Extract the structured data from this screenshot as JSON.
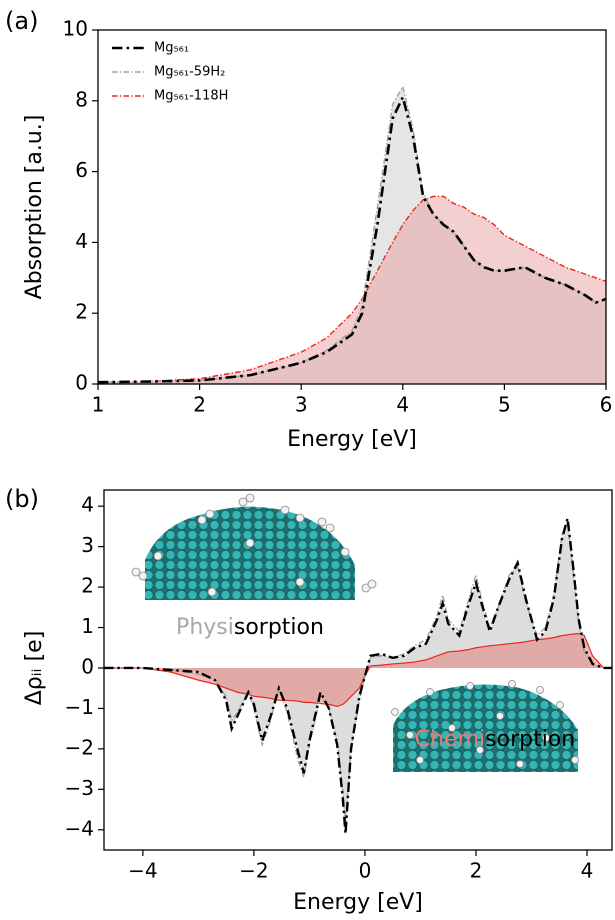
{
  "chart_data": [
    {
      "type": "line",
      "panel_label": "(a)",
      "xlabel": "Energy [eV]",
      "ylabel": "Absorption [a.u.]",
      "xlim": [
        1,
        6
      ],
      "ylim": [
        0,
        10
      ],
      "xticks": [
        1,
        2,
        3,
        4,
        5,
        6
      ],
      "yticks": [
        0,
        2,
        4,
        6,
        8,
        10
      ],
      "legend": "upper left",
      "x": [
        1,
        1.5,
        2,
        2.5,
        3,
        3.25,
        3.5,
        3.6,
        3.75,
        3.9,
        4,
        4.1,
        4.2,
        4.3,
        4.4,
        4.5,
        4.6,
        4.7,
        4.8,
        4.9,
        5,
        5.2,
        5.4,
        5.6,
        5.8,
        5.9,
        6
      ],
      "series": [
        {
          "name": "Mg₅₆₁",
          "color": "#000000",
          "style": "dashdot",
          "width": 2.6,
          "values": [
            0.05,
            0.07,
            0.1,
            0.25,
            0.6,
            0.9,
            1.4,
            2,
            4.5,
            7.5,
            8.1,
            7,
            5.3,
            4.8,
            4.5,
            4.3,
            3.9,
            3.5,
            3.3,
            3.2,
            3.2,
            3.3,
            3.0,
            2.8,
            2.5,
            2.3,
            2.4
          ]
        },
        {
          "name": "Mg₅₆₁-59H₂",
          "color": "#a0a0a0",
          "style": "dashdot",
          "width": 1.4,
          "fill": "#cccccc",
          "values": [
            0.05,
            0.07,
            0.1,
            0.25,
            0.6,
            0.95,
            1.5,
            2.2,
            5.0,
            7.9,
            8.4,
            7.2,
            5.4,
            4.8,
            4.5,
            4.3,
            3.9,
            3.5,
            3.3,
            3.2,
            3.2,
            3.3,
            3.0,
            2.8,
            2.5,
            2.3,
            2.4
          ]
        },
        {
          "name": "Mg₅₆₁-118H",
          "color": "#e8281e",
          "style": "dashdot",
          "width": 1.4,
          "fill": "#e8a0a0",
          "values": [
            0.05,
            0.07,
            0.15,
            0.4,
            0.9,
            1.3,
            2.0,
            2.4,
            3.2,
            4.0,
            4.5,
            4.9,
            5.2,
            5.3,
            5.3,
            5.1,
            5.0,
            4.8,
            4.7,
            4.5,
            4.2,
            3.9,
            3.6,
            3.3,
            3.1,
            3.0,
            2.9
          ]
        }
      ]
    },
    {
      "type": "line",
      "panel_label": "(b)",
      "xlabel": "Energy [eV]",
      "ylabel": "Δρᵢᵢ [e]",
      "xlim": [
        -4.7,
        4.45
      ],
      "ylim": [
        -4.5,
        4.4
      ],
      "xticks": [
        {
          "value": -4,
          "label": "−4"
        },
        {
          "value": -2,
          "label": "−2"
        },
        0,
        2,
        4
      ],
      "yticks": [
        {
          "value": -4,
          "label": "−4"
        },
        {
          "value": -3,
          "label": "−3"
        },
        {
          "value": -2,
          "label": "−2"
        },
        {
          "value": -1,
          "label": "−1"
        },
        0,
        1,
        2,
        3,
        4
      ],
      "annotations": [
        {
          "parts": [
            "Physi",
            "sorption"
          ]
        },
        {
          "parts": [
            "Chemi",
            "sorption"
          ]
        }
      ],
      "x": [
        -4.7,
        -4,
        -3.5,
        -3,
        -2.7,
        -2.5,
        -2.4,
        -2.3,
        -2.1,
        -2,
        -1.85,
        -1.7,
        -1.55,
        -1.4,
        -1.2,
        -1.1,
        -1,
        -0.8,
        -0.65,
        -0.5,
        -0.4,
        -0.35,
        -0.25,
        -0.1,
        0,
        0.1,
        0.3,
        0.5,
        0.7,
        0.9,
        1.1,
        1.3,
        1.4,
        1.5,
        1.7,
        1.85,
        2,
        2.1,
        2.25,
        2.4,
        2.6,
        2.75,
        2.9,
        3.1,
        3.25,
        3.4,
        3.55,
        3.65,
        3.75,
        3.85,
        3.95,
        4.1,
        4.3,
        4.45
      ],
      "series": [
        {
          "color": "#000000",
          "style": "dashdot",
          "width": 2.4,
          "fill": "#bbbbbb",
          "values": [
            0,
            0,
            -0.05,
            -0.1,
            -0.3,
            -0.8,
            -1.5,
            -1.2,
            -0.6,
            -0.9,
            -1.8,
            -1.2,
            -0.5,
            -1.0,
            -2.1,
            -2.6,
            -1.8,
            -0.6,
            -1.0,
            -1.9,
            -3.2,
            -4.1,
            -2.0,
            -0.7,
            -0.2,
            0.3,
            0.35,
            0.25,
            0.3,
            0.5,
            0.6,
            1.2,
            1.6,
            1.1,
            0.8,
            1.5,
            2.1,
            1.6,
            0.9,
            1.5,
            2.2,
            2.6,
            1.7,
            0.7,
            0.9,
            1.7,
            3.2,
            3.7,
            2.5,
            1.2,
            0.5,
            0.1,
            0,
            0
          ]
        },
        {
          "color": "#a0a0a0",
          "style": "dashdot",
          "width": 1.4,
          "values": [
            0,
            0,
            -0.05,
            -0.15,
            -0.3,
            -0.7,
            -1.3,
            -1.1,
            -0.6,
            -1.0,
            -1.9,
            -1.3,
            -0.5,
            -1.1,
            -2.3,
            -2.7,
            -1.9,
            -0.7,
            -1.0,
            -1.8,
            -3.0,
            -3.8,
            -2.0,
            -0.8,
            -0.2,
            0.25,
            0.3,
            0.25,
            0.35,
            0.55,
            0.7,
            1.3,
            1.8,
            1.2,
            0.9,
            1.6,
            2.3,
            1.7,
            1.0,
            1.5,
            2.3,
            2.5,
            1.6,
            0.8,
            1.0,
            1.8,
            3.3,
            3.6,
            2.4,
            1.1,
            0.4,
            0.1,
            0,
            0
          ]
        },
        {
          "color": "#e8281e",
          "style": "solid",
          "width": 1.2,
          "fill": "#e8776f",
          "values": [
            0,
            0,
            -0.1,
            -0.3,
            -0.4,
            -0.5,
            -0.55,
            -0.6,
            -0.65,
            -0.7,
            -0.72,
            -0.75,
            -0.8,
            -0.8,
            -0.82,
            -0.85,
            -0.85,
            -0.88,
            -0.9,
            -0.95,
            -0.9,
            -0.85,
            -0.7,
            -0.5,
            -0.2,
            0.05,
            0.07,
            0.1,
            0.12,
            0.15,
            0.2,
            0.3,
            0.35,
            0.4,
            0.42,
            0.45,
            0.5,
            0.52,
            0.55,
            0.57,
            0.6,
            0.62,
            0.65,
            0.7,
            0.72,
            0.75,
            0.8,
            0.82,
            0.84,
            0.85,
            0.8,
            0.3,
            0,
            0
          ]
        }
      ]
    }
  ]
}
